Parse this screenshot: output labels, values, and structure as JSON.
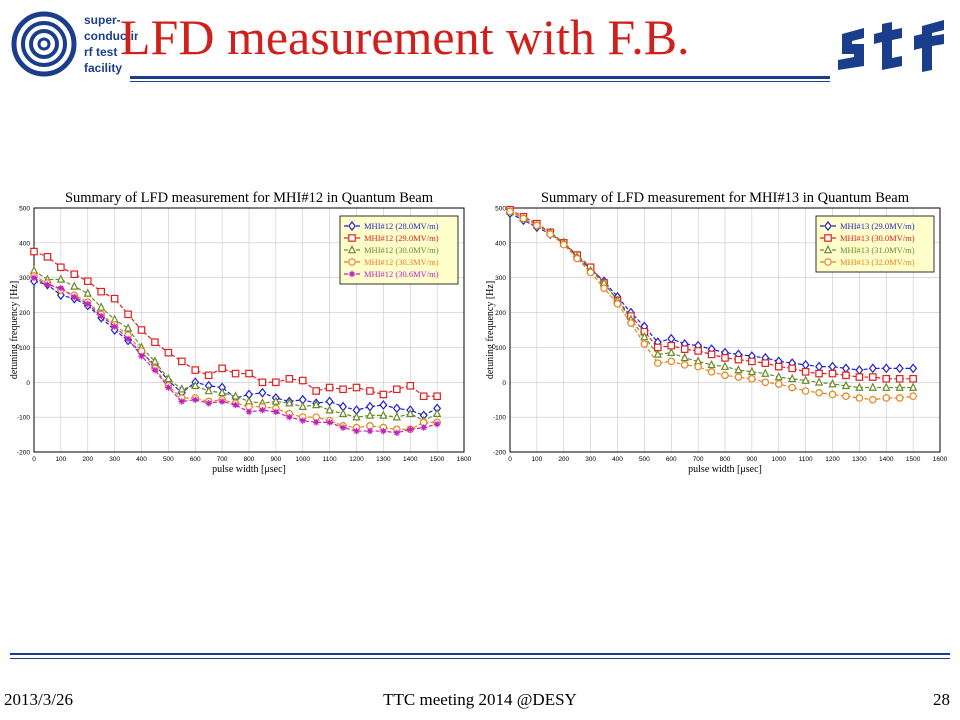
{
  "slide": {
    "title": "LFD measurement with F.B.",
    "logo_text": [
      "super-",
      "conducting",
      "rf  test",
      "facility"
    ],
    "footer_date": "2013/3/26",
    "footer_center": "TTC meeting 2014 @DESY",
    "page_number": "28",
    "colors": {
      "title": "#d0201c",
      "rule": "#1a3e8c",
      "logo_blue": "#1a3e8c"
    }
  },
  "chart_data": [
    {
      "type": "line",
      "title": "Summary of LFD measurement for MHI#12 in Quantum Beam",
      "xlabel": "pulse width [μsec]",
      "ylabel": "detuning frequency [Hz]",
      "xlim": [
        0,
        1600
      ],
      "ylim": [
        -200,
        500
      ],
      "xticks": [
        0,
        100,
        200,
        300,
        400,
        500,
        600,
        700,
        800,
        900,
        1000,
        1100,
        1200,
        1300,
        1400,
        1500,
        1600
      ],
      "yticks": [
        -200,
        -100,
        0,
        100,
        200,
        300,
        400,
        500
      ],
      "grid": true,
      "legend_position": "top-right",
      "x": [
        0,
        50,
        100,
        150,
        200,
        250,
        300,
        350,
        400,
        450,
        500,
        550,
        600,
        650,
        700,
        750,
        800,
        850,
        900,
        950,
        1000,
        1050,
        1100,
        1150,
        1200,
        1250,
        1300,
        1350,
        1400,
        1450,
        1500
      ],
      "series": [
        {
          "name": "MHI#12 (28.0MV/m)",
          "color": "#1f1fd0",
          "marker": "diamond",
          "values": [
            290,
            280,
            250,
            240,
            220,
            185,
            150,
            120,
            85,
            50,
            5,
            -30,
            0,
            -10,
            -15,
            -45,
            -35,
            -30,
            -45,
            -55,
            -50,
            -60,
            -55,
            -70,
            -80,
            -70,
            -65,
            -75,
            -80,
            -95,
            -75
          ]
        },
        {
          "name": "MHI#12 (29.0MV/m)",
          "color": "#e02020",
          "marker": "square",
          "values": [
            375,
            360,
            330,
            310,
            290,
            260,
            240,
            195,
            150,
            115,
            85,
            60,
            35,
            20,
            40,
            25,
            25,
            0,
            0,
            10,
            5,
            -25,
            -15,
            -20,
            -15,
            -25,
            -35,
            -20,
            -10,
            -40,
            -40
          ]
        },
        {
          "name": "MHI#12 (30.0MV/m)",
          "color": "#6a8a2a",
          "marker": "triangle",
          "values": [
            320,
            295,
            295,
            275,
            255,
            215,
            180,
            155,
            100,
            60,
            10,
            -20,
            -10,
            -25,
            -30,
            -40,
            -55,
            -60,
            -55,
            -60,
            -70,
            -65,
            -80,
            -90,
            -100,
            -95,
            -95,
            -100,
            -90,
            -110,
            -90
          ]
        },
        {
          "name": "MHI#12 (30.3MV/m)",
          "color": "#e8821a",
          "marker": "circle",
          "values": [
            305,
            285,
            265,
            250,
            230,
            195,
            165,
            135,
            90,
            40,
            -10,
            -45,
            -45,
            -55,
            -50,
            -60,
            -70,
            -70,
            -75,
            -90,
            -100,
            -100,
            -110,
            -125,
            -130,
            -125,
            -130,
            -135,
            -135,
            -115,
            -115
          ]
        },
        {
          "name": "MHI#12 (30.6MV/m)",
          "color": "#c020c0",
          "marker": "star",
          "values": [
            300,
            280,
            270,
            245,
            225,
            190,
            160,
            125,
            75,
            35,
            -15,
            -55,
            -50,
            -60,
            -55,
            -65,
            -85,
            -80,
            -85,
            -100,
            -110,
            -115,
            -115,
            -130,
            -140,
            -140,
            -140,
            -145,
            -135,
            -130,
            -120
          ]
        }
      ]
    },
    {
      "type": "line",
      "title": "Summary of LFD measurement for MHI#13 in Quantum Beam",
      "xlabel": "pulse width [μsec]",
      "ylabel": "detuning frequency [Hz]",
      "xlim": [
        0,
        1600
      ],
      "ylim": [
        -200,
        500
      ],
      "xticks": [
        0,
        100,
        200,
        300,
        400,
        500,
        600,
        700,
        800,
        900,
        1000,
        1100,
        1200,
        1300,
        1400,
        1500,
        1600
      ],
      "yticks": [
        -200,
        -100,
        0,
        100,
        200,
        300,
        400,
        500
      ],
      "grid": true,
      "legend_position": "top-right",
      "x": [
        0,
        50,
        100,
        150,
        200,
        250,
        300,
        350,
        400,
        450,
        500,
        550,
        600,
        650,
        700,
        750,
        800,
        850,
        900,
        950,
        1000,
        1050,
        1100,
        1150,
        1200,
        1250,
        1300,
        1350,
        1400,
        1450,
        1500
      ],
      "series": [
        {
          "name": "MHI#13 (29.0MV/m)",
          "color": "#1f1fd0",
          "marker": "diamond",
          "values": [
            485,
            465,
            445,
            425,
            400,
            360,
            325,
            290,
            245,
            200,
            160,
            115,
            125,
            110,
            105,
            95,
            85,
            80,
            75,
            70,
            60,
            55,
            50,
            45,
            45,
            40,
            35,
            40,
            40,
            40,
            40
          ]
        },
        {
          "name": "MHI#13 (30.0MV/m)",
          "color": "#e02020",
          "marker": "square",
          "values": [
            495,
            475,
            455,
            430,
            400,
            365,
            330,
            285,
            235,
            190,
            145,
            100,
            105,
            95,
            90,
            80,
            70,
            65,
            60,
            55,
            45,
            40,
            30,
            25,
            25,
            20,
            15,
            15,
            10,
            10,
            10
          ]
        },
        {
          "name": "MHI#13 (31.0MV/m)",
          "color": "#6a8a2a",
          "marker": "triangle",
          "values": [
            490,
            470,
            450,
            430,
            400,
            360,
            320,
            285,
            235,
            180,
            130,
            80,
            85,
            70,
            60,
            50,
            45,
            35,
            30,
            25,
            15,
            10,
            5,
            0,
            -5,
            -10,
            -15,
            -15,
            -15,
            -15,
            -15
          ]
        },
        {
          "name": "MHI#13 (32.0MV/m)",
          "color": "#e8821a",
          "marker": "circle",
          "values": [
            490,
            470,
            450,
            425,
            395,
            355,
            315,
            270,
            225,
            170,
            110,
            55,
            60,
            50,
            45,
            30,
            20,
            15,
            10,
            0,
            -5,
            -15,
            -25,
            -30,
            -35,
            -40,
            -45,
            -50,
            -45,
            -45,
            -40
          ]
        }
      ]
    }
  ]
}
